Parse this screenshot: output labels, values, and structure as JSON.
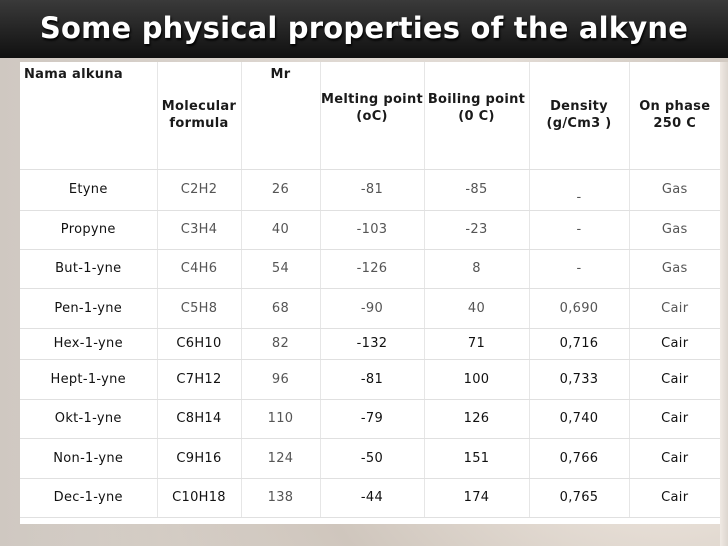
{
  "slide": {
    "title": "Some physical properties of the alkyne"
  },
  "table": {
    "headers": {
      "name": "Nama alkuna",
      "formula": "Molecular formula",
      "mr": "Mr",
      "melting": "Melting point (oC)",
      "boiling": "Boiling point (0 C)",
      "density": "Density (g/Cm3 )",
      "phase": "On phase 250 C"
    },
    "rows": [
      {
        "name": "Etyne",
        "formula": "C2H2",
        "mr": "26",
        "melting": "-81",
        "boiling": "-85",
        "density": "-",
        "phase": "Gas"
      },
      {
        "name": "Propyne",
        "formula": "C3H4",
        "mr": "40",
        "melting": "-103",
        "boiling": "-23",
        "density": "-",
        "phase": "Gas"
      },
      {
        "name": "But-1-yne",
        "formula": "C4H6",
        "mr": "54",
        "melting": "-126",
        "boiling": "8",
        "density": "-",
        "phase": "Gas"
      },
      {
        "name": "Pen-1-yne",
        "formula": "C5H8",
        "mr": "68",
        "melting": "-90",
        "boiling": "40",
        "density": "0,690",
        "phase": "Cair"
      },
      {
        "name": "Hex-1-yne",
        "formula": "C6H10",
        "mr": "82",
        "melting": "-132",
        "boiling": "71",
        "density": "0,716",
        "phase": "Cair"
      },
      {
        "name": "Hept-1-yne",
        "formula": "C7H12",
        "mr": "96",
        "melting": "-81",
        "boiling": "100",
        "density": "0,733",
        "phase": "Cair"
      },
      {
        "name": "Okt-1-yne",
        "formula": "C8H14",
        "mr": "110",
        "melting": "-79",
        "boiling": "126",
        "density": "0,740",
        "phase": "Cair"
      },
      {
        "name": "Non-1-yne",
        "formula": "C9H16",
        "mr": "124",
        "melting": "-50",
        "boiling": "151",
        "density": "0,766",
        "phase": "Cair"
      },
      {
        "name": "Dec-1-yne",
        "formula": "C10H18",
        "mr": "138",
        "melting": "-44",
        "boiling": "174",
        "density": "0,765",
        "phase": "Cair"
      }
    ]
  },
  "colors": {
    "title_bar": "#101010",
    "title_text": "#ffffff",
    "table_bg": "#ffffff",
    "grid_line": "#e0e0e0"
  }
}
